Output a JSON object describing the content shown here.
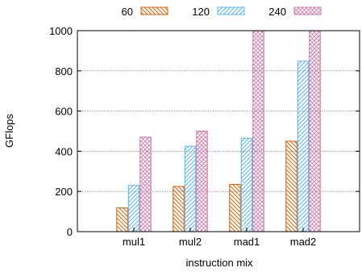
{
  "chart_data": {
    "type": "bar",
    "title": "",
    "xlabel": "instruction mix",
    "ylabel": "GFlops",
    "ylim": [
      0,
      1000
    ],
    "yticks": [
      0,
      200,
      400,
      600,
      800,
      1000
    ],
    "categories": [
      "mul1",
      "mul2",
      "mad1",
      "mad2"
    ],
    "series": [
      {
        "name": "60",
        "values": [
          null,
          225,
          235,
          450
        ],
        "color": "#d95f02",
        "pattern": "diag-down"
      },
      {
        "name": "120",
        "values": [
          230,
          425,
          465,
          848
        ],
        "color": "#56b4e9",
        "pattern": "diag-up"
      },
      {
        "name": "240",
        "values": [
          470,
          500,
          1000,
          1000
        ],
        "color": "#cc79a7",
        "pattern": "crosshatch"
      }
    ],
    "extra_values": {
      "mul1_60": 118
    },
    "grid": "horizontal-dotted",
    "legend_position": "top"
  }
}
